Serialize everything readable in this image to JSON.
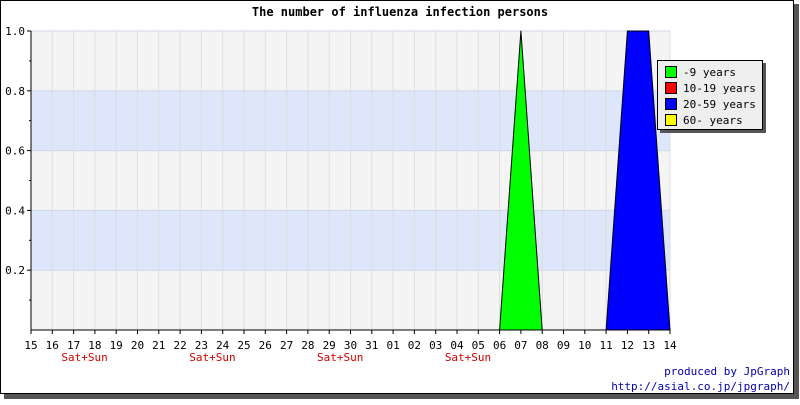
{
  "chart_data": {
    "type": "area",
    "title": "The number of influenza infection persons",
    "xlabel": "",
    "ylabel": "",
    "ylim": [
      0,
      1.0
    ],
    "y_ticks": [
      "0.2",
      "0.4",
      "0.6",
      "0.8",
      "1.0"
    ],
    "y_tick_values": [
      0.2,
      0.4,
      0.6,
      0.8,
      1.0
    ],
    "x_ticks": [
      "15",
      "16",
      "17",
      "18",
      "19",
      "20",
      "21",
      "22",
      "23",
      "24",
      "25",
      "26",
      "27",
      "28",
      "29",
      "30",
      "31",
      "01",
      "02",
      "03",
      "04",
      "05",
      "06",
      "07",
      "08",
      "09",
      "10",
      "11",
      "12",
      "13",
      "14"
    ],
    "weekend_labels": [
      {
        "at": "17",
        "text": "Sat+Sun"
      },
      {
        "at": "23",
        "text": "Sat+Sun"
      },
      {
        "at": "29",
        "text": "Sat+Sun"
      },
      {
        "at": "04",
        "text": "Sat+Sun"
      }
    ],
    "grid": true,
    "legend_position": "top-right",
    "series": [
      {
        "name": "-9 years",
        "color": "#00ff00",
        "values": [
          0,
          0,
          0,
          0,
          0,
          0,
          0,
          0,
          0,
          0,
          0,
          0,
          0,
          0,
          0,
          0,
          0,
          0,
          0,
          0,
          0,
          0,
          0,
          1,
          0,
          0,
          0,
          0,
          0,
          0,
          0
        ]
      },
      {
        "name": "10-19 years",
        "color": "#ff0000",
        "values": [
          0,
          0,
          0,
          0,
          0,
          0,
          0,
          0,
          0,
          0,
          0,
          0,
          0,
          0,
          0,
          0,
          0,
          0,
          0,
          0,
          0,
          0,
          0,
          0,
          0,
          0,
          0,
          0,
          0,
          0,
          0
        ]
      },
      {
        "name": "20-59 years",
        "color": "#0000ff",
        "values": [
          0,
          0,
          0,
          0,
          0,
          0,
          0,
          0,
          0,
          0,
          0,
          0,
          0,
          0,
          0,
          0,
          0,
          0,
          0,
          0,
          0,
          0,
          0,
          0,
          0,
          0,
          0,
          0,
          1,
          1,
          0
        ]
      },
      {
        "name": "60- years",
        "color": "#ffff00",
        "values": [
          0,
          0,
          0,
          0,
          0,
          0,
          0,
          0,
          0,
          0,
          0,
          0,
          0,
          0,
          0,
          0,
          0,
          0,
          0,
          0,
          0,
          0,
          0,
          0,
          0,
          0,
          0,
          0,
          0,
          0,
          0
        ]
      }
    ]
  },
  "footer": {
    "credit": "produced by JpGraph",
    "url": "http://asial.co.jp/jpgraph/"
  },
  "colors": {
    "weekend_label": "#cc0000",
    "credit_text": "#0000aa",
    "band_fill": "#dde6fb",
    "plot_bg": "#f4f4f4"
  }
}
